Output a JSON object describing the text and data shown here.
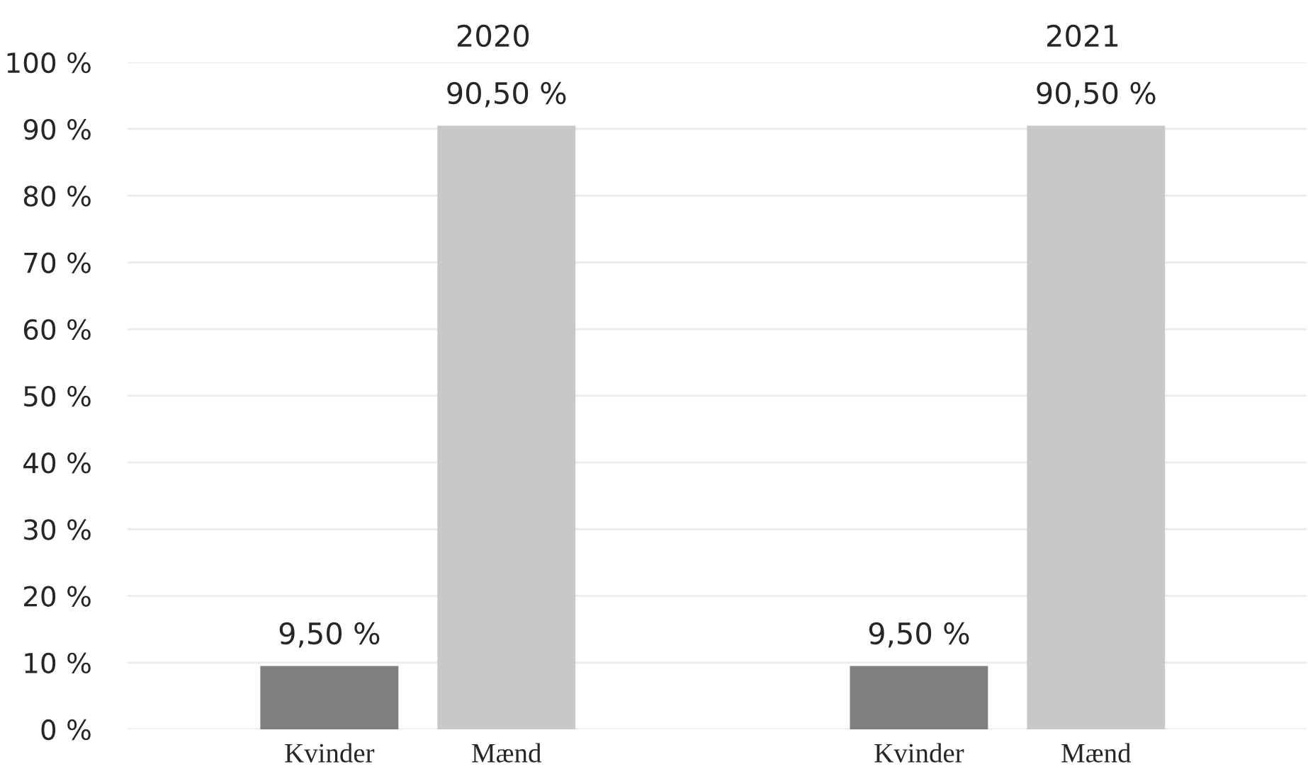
{
  "chart_data": [
    {
      "type": "bar",
      "title": "2020",
      "categories": [
        "Kvinder",
        "Mænd"
      ],
      "values": [
        9.5,
        90.5
      ],
      "colors": [
        "#7f7f7f",
        "#c8c8c8"
      ],
      "value_labels": [
        "9,50 %",
        "90,50 %"
      ],
      "ylim": [
        0,
        100
      ],
      "yticks": [
        {
          "value": 0,
          "label": "0 %"
        },
        {
          "value": 10,
          "label": "10 %"
        },
        {
          "value": 20,
          "label": "20 %"
        },
        {
          "value": 30,
          "label": "30 %"
        },
        {
          "value": 40,
          "label": "40 %"
        },
        {
          "value": 50,
          "label": "50 %"
        },
        {
          "value": 60,
          "label": "60 %"
        },
        {
          "value": 70,
          "label": "70 %"
        },
        {
          "value": 80,
          "label": "80 %"
        },
        {
          "value": 90,
          "label": "90 %"
        },
        {
          "value": 100,
          "label": "100 %"
        }
      ],
      "grid": "y"
    },
    {
      "type": "bar",
      "title": "2021",
      "categories": [
        "Kvinder",
        "Mænd"
      ],
      "values": [
        9.5,
        90.5
      ],
      "colors": [
        "#7f7f7f",
        "#c8c8c8"
      ],
      "value_labels": [
        "9,50 %",
        "90,50 %"
      ],
      "ylim": [
        0,
        100
      ],
      "yticks": [
        {
          "value": 0,
          "label": null
        },
        {
          "value": 10,
          "label": null
        },
        {
          "value": 20,
          "label": null
        },
        {
          "value": 30,
          "label": null
        },
        {
          "value": 40,
          "label": null
        },
        {
          "value": 50,
          "label": null
        },
        {
          "value": 60,
          "label": null
        },
        {
          "value": 70,
          "label": null
        },
        {
          "value": 80,
          "label": null
        },
        {
          "value": 90,
          "label": null
        },
        {
          "value": 100,
          "label": null
        }
      ],
      "grid": "y",
      "tick_labels": "x"
    }
  ]
}
